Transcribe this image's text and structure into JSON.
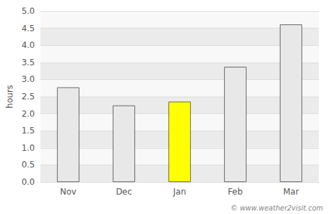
{
  "chart_data": {
    "type": "bar",
    "categories": [
      "Nov",
      "Dec",
      "Jan",
      "Feb",
      "Mar"
    ],
    "values": [
      2.77,
      2.24,
      2.35,
      3.37,
      4.61
    ],
    "colors": [
      "#e8e8e8",
      "#e8e8e8",
      "#ffff00",
      "#e8e8e8",
      "#e8e8e8"
    ],
    "ylabel": "hours",
    "ylim": [
      0,
      5.0
    ],
    "yticks": [
      {
        "value": 0.0,
        "label": "0.0"
      },
      0.5,
      {
        "value": 1.0,
        "label": "1.0"
      },
      1.5,
      {
        "value": 2.0,
        "label": "2.0"
      },
      2.5,
      {
        "value": 3.0,
        "label": "3.0"
      },
      3.5,
      {
        "value": 4.0,
        "label": "4.0"
      },
      4.5,
      {
        "value": 5.0,
        "label": "5.0"
      }
    ],
    "grid": true,
    "annotations": [
      "© www.weather2visit.com"
    ]
  }
}
